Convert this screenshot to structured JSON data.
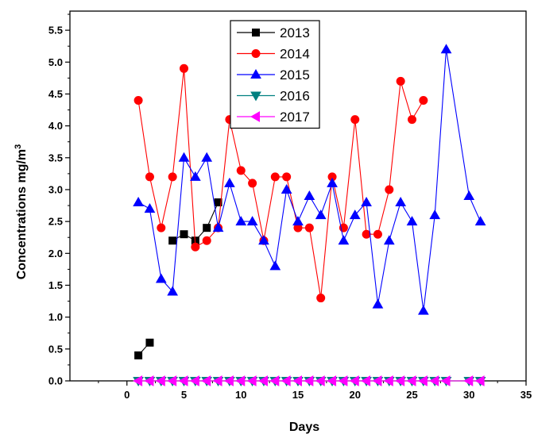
{
  "chart_data": {
    "type": "line",
    "xlabel": "Days",
    "ylabel": "Concentrations mg/m",
    "ylabel_superscript": "3",
    "xlim": [
      -5,
      35
    ],
    "ylim": [
      0,
      5.8
    ],
    "xticks": [
      0,
      5,
      10,
      15,
      20,
      25,
      30,
      35
    ],
    "xtick_labels": [
      "0",
      "5",
      "10",
      "15",
      "20",
      "25",
      "30",
      "35"
    ],
    "yticks": [
      0.0,
      0.5,
      1.0,
      1.5,
      2.0,
      2.5,
      3.0,
      3.5,
      4.0,
      4.5,
      5.0,
      5.5
    ],
    "ytick_labels": [
      "0.0",
      "0.5",
      "1.0",
      "1.5",
      "2.0",
      "2.5",
      "3.0",
      "3.5",
      "4.0",
      "4.5",
      "5.0",
      "5.5"
    ],
    "grid": false,
    "legend_position": "top-center",
    "series": [
      {
        "name": "2013",
        "color": "#000000",
        "marker": "square",
        "x": [
          1,
          2,
          4,
          5,
          6,
          7,
          8
        ],
        "y": [
          0.4,
          0.6,
          2.2,
          2.3,
          2.2,
          2.4,
          2.8
        ],
        "segments": [
          [
            0,
            1
          ],
          [
            2,
            6
          ]
        ]
      },
      {
        "name": "2014",
        "color": "#ff0000",
        "marker": "circle",
        "x": [
          1,
          2,
          3,
          4,
          5,
          6,
          7,
          8,
          9,
          10,
          11,
          12,
          13,
          14,
          15,
          16,
          17,
          18,
          19,
          20,
          21,
          22,
          23,
          24,
          25,
          26
        ],
        "y": [
          4.4,
          3.2,
          2.4,
          3.2,
          4.9,
          2.1,
          2.2,
          2.4,
          4.1,
          3.3,
          3.1,
          2.2,
          3.2,
          3.2,
          2.4,
          2.4,
          1.3,
          3.2,
          2.4,
          4.1,
          2.3,
          2.3,
          3.0,
          4.7,
          4.1,
          4.4
        ]
      },
      {
        "name": "2015",
        "color": "#0000ff",
        "marker": "triangle-up",
        "x": [
          1,
          2,
          3,
          4,
          5,
          6,
          7,
          8,
          9,
          10,
          11,
          12,
          13,
          14,
          15,
          16,
          17,
          18,
          19,
          20,
          21,
          22,
          23,
          24,
          25,
          26,
          27,
          28,
          30,
          31
        ],
        "y": [
          2.8,
          2.7,
          1.6,
          1.4,
          3.5,
          3.2,
          3.5,
          2.4,
          3.1,
          2.5,
          2.5,
          2.2,
          1.8,
          3.0,
          2.5,
          2.9,
          2.6,
          3.1,
          2.2,
          2.6,
          2.8,
          1.2,
          2.2,
          2.8,
          2.5,
          1.1,
          2.6,
          5.2,
          2.9,
          2.5
        ]
      },
      {
        "name": "2016",
        "color": "#008080",
        "marker": "triangle-down",
        "x": [
          1,
          2,
          3,
          4,
          5,
          6,
          7,
          8,
          9,
          10,
          11,
          12,
          13,
          14,
          15,
          16,
          17,
          18,
          19,
          20,
          21,
          22,
          23,
          24,
          25,
          26,
          27,
          28,
          30,
          31
        ],
        "y": [
          0,
          0,
          0,
          0,
          0,
          0,
          0,
          0,
          0,
          0,
          0,
          0,
          0,
          0,
          0,
          0,
          0,
          0,
          0,
          0,
          0,
          0,
          0,
          0,
          0,
          0,
          0,
          0,
          0,
          0
        ]
      },
      {
        "name": "2017",
        "color": "#ff00ff",
        "marker": "triangle-left",
        "x": [
          1,
          2,
          3,
          4,
          5,
          6,
          7,
          8,
          9,
          10,
          11,
          12,
          13,
          14,
          15,
          16,
          17,
          18,
          19,
          20,
          21,
          22,
          23,
          24,
          25,
          26,
          27,
          28,
          30,
          31
        ],
        "y": [
          0,
          0,
          0,
          0,
          0,
          0,
          0,
          0,
          0,
          0,
          0,
          0,
          0,
          0,
          0,
          0,
          0,
          0,
          0,
          0,
          0,
          0,
          0,
          0,
          0,
          0,
          0,
          0,
          0,
          0
        ]
      }
    ]
  }
}
